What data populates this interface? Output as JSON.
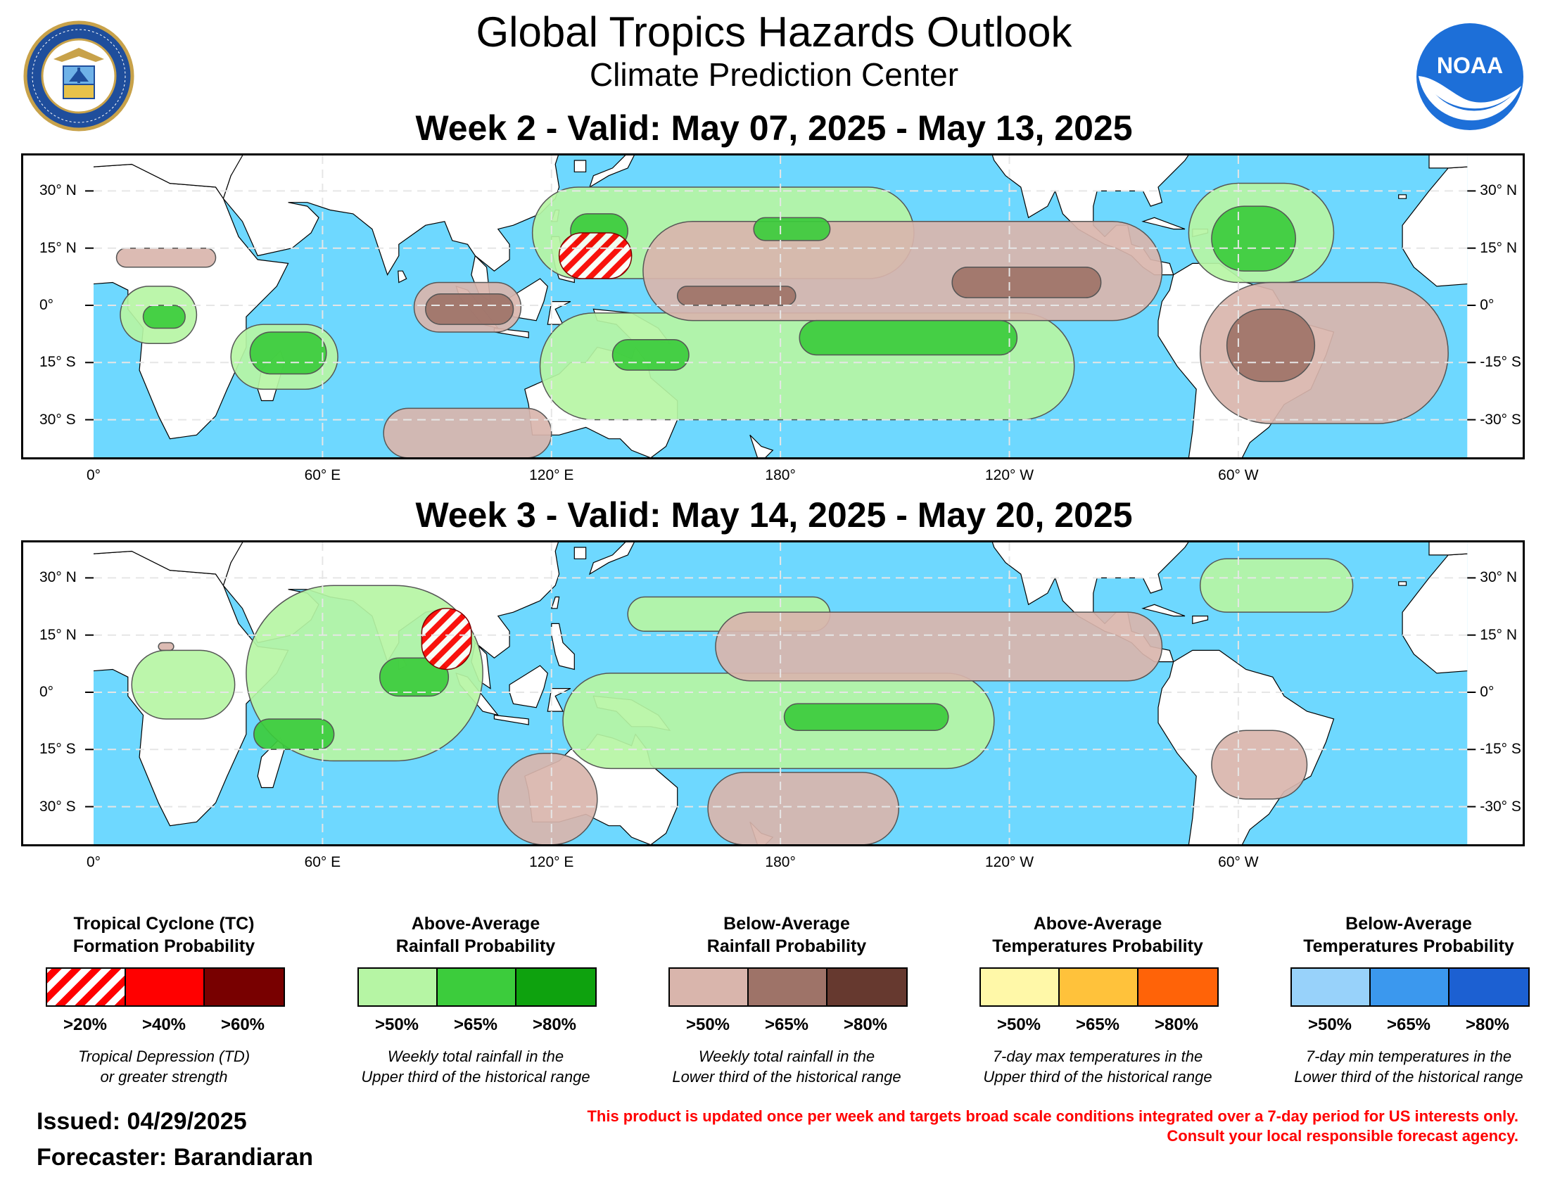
{
  "title": "Global Tropics Hazards Outlook",
  "subtitle": "Climate Prediction Center",
  "logos": {
    "left": "department-of-commerce-seal",
    "right": "noaa-logo",
    "right_text": "NOAA"
  },
  "colors": {
    "ocean": "#6ed8ff",
    "land": "#ffffff",
    "tc_hatch": "#ff0000",
    "tc_40": "#ff0000",
    "tc_60": "#780000",
    "rain_above_50": "#b6f5a4",
    "rain_above_65": "#3ccc3c",
    "rain_above_80": "#0ea20e",
    "rain_below_50": "#d9b5ac",
    "rain_below_65": "#9e7368",
    "rain_below_80": "#66392f",
    "temp_above_50": "#fff8a8",
    "temp_above_65": "#ffc23b",
    "temp_above_80": "#ff6308",
    "temp_below_50": "#98d2fa",
    "temp_below_65": "#3b98ee",
    "temp_below_80": "#1c60d2"
  },
  "axes": {
    "lat_left": [
      "30° N",
      "15° N",
      "0°",
      "15° S",
      "30° S"
    ],
    "lat_right": [
      "30° N",
      "15° N",
      "0°",
      "-15° S",
      "-30° S"
    ],
    "lon": [
      "0°",
      "60° E",
      "120° E",
      "180°",
      "120° W",
      "60° W"
    ],
    "lon_values": [
      0,
      60,
      120,
      180,
      240,
      300
    ],
    "lat_values": [
      30,
      15,
      0,
      -15,
      -30
    ],
    "lon_range": [
      0,
      360
    ],
    "lat_range": [
      -40,
      40
    ],
    "grid": "dashed"
  },
  "weeks": [
    {
      "title": "Week 2 - Valid: May 07, 2025 - May 13, 2025",
      "hazards": [
        {
          "type": "tc",
          "level": ">20%",
          "region": "Philippine Sea",
          "lon": [
            122,
            141
          ],
          "lat": [
            7,
            19
          ]
        },
        {
          "type": "rain_above",
          "level": ">50%",
          "region": "Western North Pacific",
          "lon": [
            115,
            215
          ],
          "lat": [
            7,
            31
          ]
        },
        {
          "type": "rain_above",
          "level": ">65%",
          "region": "Philippine Sea core",
          "lon": [
            125,
            140
          ],
          "lat": [
            15,
            24
          ]
        },
        {
          "type": "rain_above",
          "level": ">65%",
          "region": "Central North Pacific",
          "lon": [
            173,
            193
          ],
          "lat": [
            17,
            23
          ]
        },
        {
          "type": "rain_above",
          "level": ">50%",
          "region": "Caribbean / Western Atlantic",
          "lon": [
            287,
            325
          ],
          "lat": [
            6,
            32
          ]
        },
        {
          "type": "rain_above",
          "level": ">65%",
          "region": "Caribbean core",
          "lon": [
            293,
            315
          ],
          "lat": [
            9,
            26
          ]
        },
        {
          "type": "rain_above",
          "level": ">50%",
          "region": "Central Africa",
          "lon": [
            7,
            27
          ],
          "lat": [
            -10,
            5
          ]
        },
        {
          "type": "rain_above",
          "level": ">65%",
          "region": "Central Africa core",
          "lon": [
            13,
            24
          ],
          "lat": [
            -6,
            0
          ]
        },
        {
          "type": "rain_above",
          "level": ">50%",
          "region": "Madagascar / SW Indian Ocean",
          "lon": [
            36,
            64
          ],
          "lat": [
            -22,
            -5
          ]
        },
        {
          "type": "rain_above",
          "level": ">65%",
          "region": "SW Indian Ocean core",
          "lon": [
            41,
            61
          ],
          "lat": [
            -18,
            -7
          ]
        },
        {
          "type": "rain_above",
          "level": ">50%",
          "region": "SPCZ / Western Pacific",
          "lon": [
            117,
            257
          ],
          "lat": [
            -30,
            -2
          ]
        },
        {
          "type": "rain_above",
          "level": ">65%",
          "region": "South Pacific core",
          "lon": [
            185,
            242
          ],
          "lat": [
            -13,
            -4
          ]
        },
        {
          "type": "rain_above",
          "level": ">65%",
          "region": "Coral Sea core",
          "lon": [
            136,
            156
          ],
          "lat": [
            -17,
            -9
          ]
        },
        {
          "type": "rain_below",
          "level": ">50%",
          "region": "Sahel",
          "lon": [
            6,
            32
          ],
          "lat": [
            10,
            15
          ]
        },
        {
          "type": "rain_below",
          "level": ">50%",
          "region": "Eastern Indian Ocean",
          "lon": [
            84,
            112
          ],
          "lat": [
            -7,
            6
          ]
        },
        {
          "type": "rain_below",
          "level": ">65%",
          "region": "Eastern Indian Ocean core",
          "lon": [
            87,
            110
          ],
          "lat": [
            -5,
            3
          ]
        },
        {
          "type": "rain_below",
          "level": ">50%",
          "region": "Central / Eastern Pacific",
          "lon": [
            144,
            280
          ],
          "lat": [
            -4,
            22
          ]
        },
        {
          "type": "rain_below",
          "level": ">65%",
          "region": "Central Pacific core",
          "lon": [
            153,
            184
          ],
          "lat": [
            0,
            5
          ]
        },
        {
          "type": "rain_below",
          "level": ">65%",
          "region": "Eastern Pacific core",
          "lon": [
            225,
            264
          ],
          "lat": [
            2,
            10
          ]
        },
        {
          "type": "rain_below",
          "level": ">50%",
          "region": "South Indian Ocean",
          "lon": [
            76,
            120
          ],
          "lat": [
            -40,
            -27
          ]
        },
        {
          "type": "rain_below",
          "level": ">50%",
          "region": "Brazil / South Atlantic",
          "lon": [
            290,
            355
          ],
          "lat": [
            -31,
            6
          ]
        },
        {
          "type": "rain_below",
          "level": ">65%",
          "region": "Brazil core",
          "lon": [
            297,
            320
          ],
          "lat": [
            -20,
            -1
          ]
        }
      ]
    },
    {
      "title": "Week 3 - Valid: May 14, 2025 - May 20, 2025",
      "hazards": [
        {
          "type": "tc",
          "level": ">20%",
          "region": "Bay of Bengal",
          "lon": [
            86,
            99
          ],
          "lat": [
            6,
            22
          ]
        },
        {
          "type": "rain_above",
          "level": ">50%",
          "region": "Indian Ocean / Bay of Bengal",
          "lon": [
            40,
            102
          ],
          "lat": [
            -18,
            28
          ]
        },
        {
          "type": "rain_above",
          "level": ">65%",
          "region": "Equatorial Indian Ocean core",
          "lon": [
            75,
            93
          ],
          "lat": [
            -1,
            9
          ]
        },
        {
          "type": "rain_above",
          "level": ">65%",
          "region": "SW Indian Ocean core",
          "lon": [
            42,
            63
          ],
          "lat": [
            -15,
            -7
          ]
        },
        {
          "type": "rain_above",
          "level": ">50%",
          "region": "East Africa",
          "lon": [
            10,
            37
          ],
          "lat": [
            -7,
            11
          ]
        },
        {
          "type": "rain_above",
          "level": ">50%",
          "region": "Western North Pacific",
          "lon": [
            140,
            193
          ],
          "lat": [
            16,
            25
          ]
        },
        {
          "type": "rain_above",
          "level": ">50%",
          "region": "Western Atlantic",
          "lon": [
            290,
            330
          ],
          "lat": [
            21,
            35
          ]
        },
        {
          "type": "rain_above",
          "level": ">50%",
          "region": "SPCZ / Western Pacific",
          "lon": [
            123,
            236
          ],
          "lat": [
            -20,
            5
          ]
        },
        {
          "type": "rain_above",
          "level": ">65%",
          "region": "South Pacific core",
          "lon": [
            181,
            224
          ],
          "lat": [
            -10,
            -3
          ]
        },
        {
          "type": "rain_below",
          "level": ">50%",
          "region": "Sahel spot",
          "lon": [
            17,
            21
          ],
          "lat": [
            11,
            13
          ]
        },
        {
          "type": "rain_below",
          "level": ">50%",
          "region": "Central / Eastern Pacific",
          "lon": [
            163,
            280
          ],
          "lat": [
            3,
            21
          ]
        },
        {
          "type": "rain_below",
          "level": ">50%",
          "region": "Western Australia coast",
          "lon": [
            106,
            132
          ],
          "lat": [
            -40,
            -16
          ]
        },
        {
          "type": "rain_below",
          "level": ">50%",
          "region": "South Pacific",
          "lon": [
            161,
            211
          ],
          "lat": [
            -40,
            -21
          ]
        },
        {
          "type": "rain_below",
          "level": ">50%",
          "region": "Southern Brazil",
          "lon": [
            293,
            318
          ],
          "lat": [
            -28,
            -10
          ]
        }
      ]
    }
  ],
  "legend": [
    {
      "title": "Tropical Cyclone (TC)\nFormation Probability",
      "kind": "tc",
      "thresholds": [
        ">20%",
        ">40%",
        ">60%"
      ],
      "note": "Tropical Depression (TD)\nor greater strength"
    },
    {
      "title": "Above-Average\nRainfall Probability",
      "kind": "rain_above",
      "thresholds": [
        ">50%",
        ">65%",
        ">80%"
      ],
      "note": "Weekly total rainfall in the\nUpper third of the historical range"
    },
    {
      "title": "Below-Average\nRainfall Probability",
      "kind": "rain_below",
      "thresholds": [
        ">50%",
        ">65%",
        ">80%"
      ],
      "note": "Weekly total rainfall in the\nLower third of the historical range"
    },
    {
      "title": "Above-Average\nTemperatures Probability",
      "kind": "temp_above",
      "thresholds": [
        ">50%",
        ">65%",
        ">80%"
      ],
      "note": "7-day max temperatures in the\nUpper third of the historical range"
    },
    {
      "title": "Below-Average\nTemperatures Probability",
      "kind": "temp_below",
      "thresholds": [
        ">50%",
        ">65%",
        ">80%"
      ],
      "note": "7-day min temperatures in the\nLower third of the historical range"
    }
  ],
  "issued": "Issued: 04/29/2025",
  "forecaster": "Forecaster: Barandiaran",
  "disclaimer_line1": "This product is updated once per week and targets broad scale conditions integrated over a 7-day period for US interests only.",
  "disclaimer_line2": "Consult your local responsible forecast agency."
}
